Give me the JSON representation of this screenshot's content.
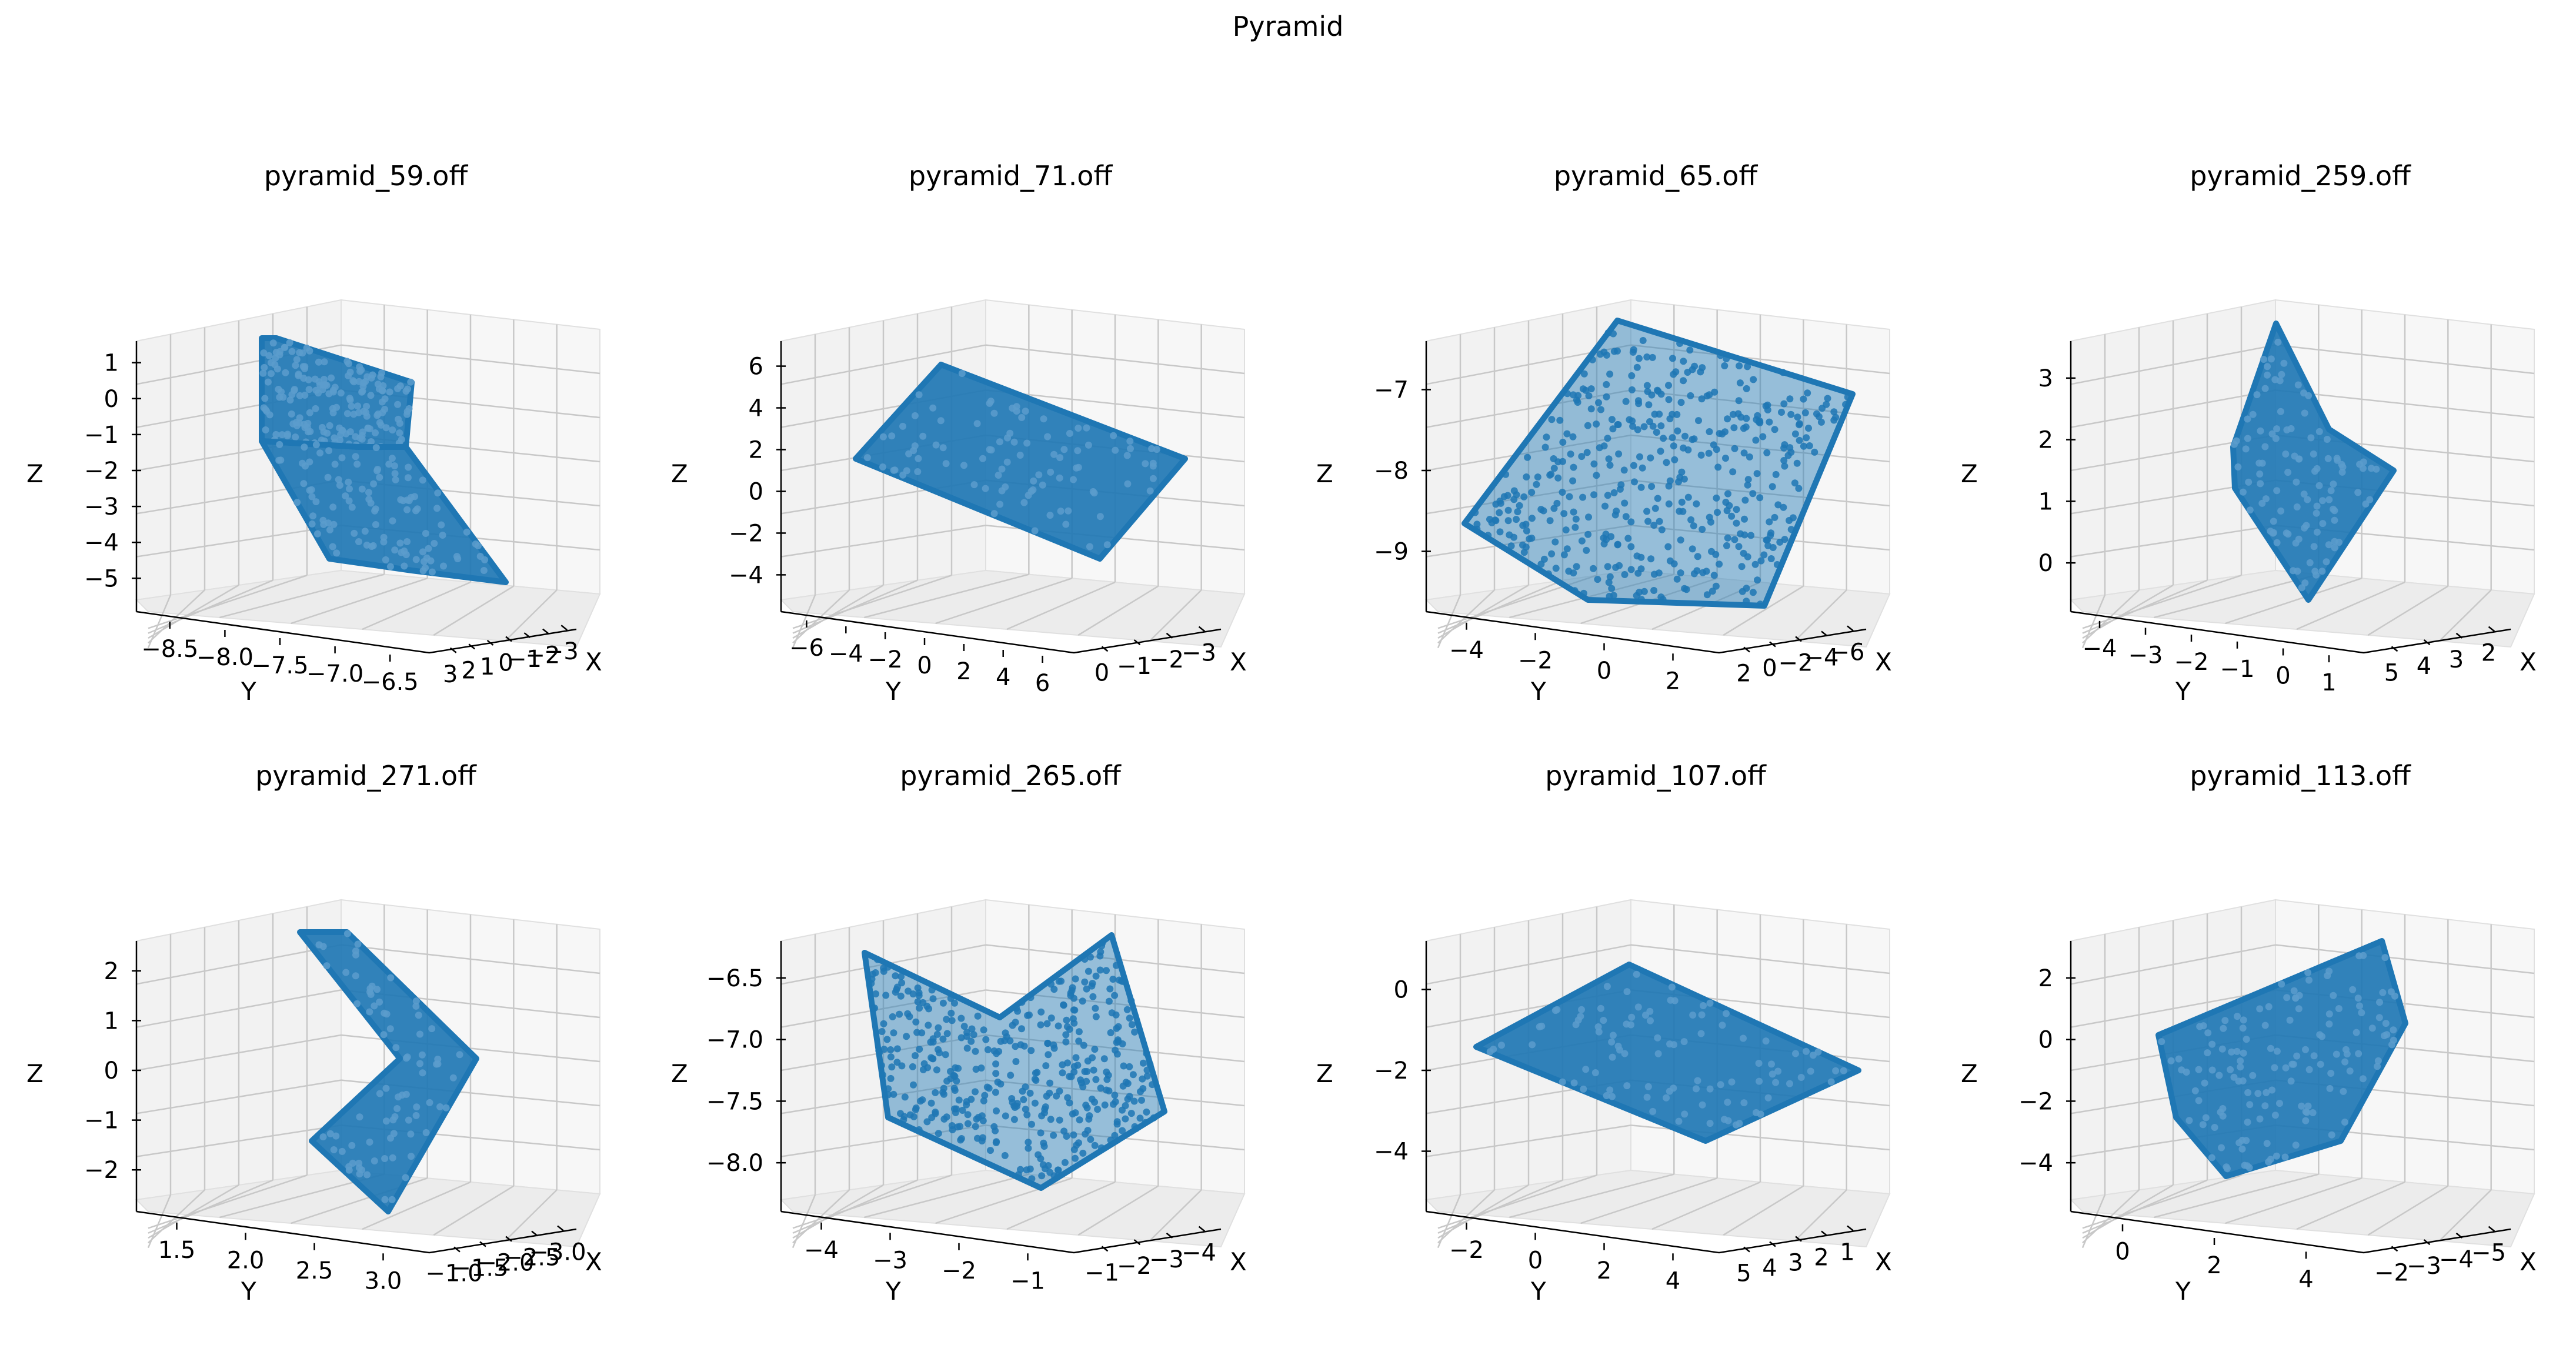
{
  "suptitle": "Pyramid",
  "chart_data": [
    {
      "type": "scatter",
      "title": "pyramid_59.off",
      "xlabel": "X",
      "ylabel": "Y",
      "zlabel": "Z",
      "shape": "fold",
      "x_ticks": [
        "3",
        "2",
        "1",
        "0",
        "−1",
        "−2",
        "−3"
      ],
      "y_ticks": [
        "−8.5",
        "−8.0",
        "−7.5",
        "−7.0",
        "−6.5"
      ],
      "z_ticks": [
        "1",
        "0",
        "−1",
        "−2",
        "−3",
        "−4",
        "−5"
      ],
      "point_color": "#1f77b4"
    },
    {
      "type": "scatter",
      "title": "pyramid_71.off",
      "xlabel": "X",
      "ylabel": "Y",
      "zlabel": "Z",
      "shape": "slab",
      "x_ticks": [
        "0",
        "−1",
        "−2",
        "−3"
      ],
      "y_ticks": [
        "−6",
        "−4",
        "−2",
        "0",
        "2",
        "4",
        "6"
      ],
      "z_ticks": [
        "6",
        "4",
        "2",
        "0",
        "−2",
        "−4"
      ],
      "point_color": "#1f77b4"
    },
    {
      "type": "scatter",
      "title": "pyramid_65.off",
      "xlabel": "X",
      "ylabel": "Y",
      "zlabel": "Z",
      "shape": "sparse",
      "x_ticks": [
        "2",
        "0",
        "−2",
        "−4",
        "−6"
      ],
      "y_ticks": [
        "−4",
        "−2",
        "0",
        "2"
      ],
      "z_ticks": [
        "−7",
        "−8",
        "−9"
      ],
      "point_color": "#1f77b4"
    },
    {
      "type": "scatter",
      "title": "pyramid_259.off",
      "xlabel": "X",
      "ylabel": "Y",
      "zlabel": "Z",
      "shape": "diamond",
      "x_ticks": [
        "5",
        "4",
        "3",
        "2"
      ],
      "y_ticks": [
        "−4",
        "−3",
        "−2",
        "−1",
        "0",
        "1"
      ],
      "z_ticks": [
        "3",
        "2",
        "1",
        "0"
      ],
      "point_color": "#1f77b4"
    },
    {
      "type": "scatter",
      "title": "pyramid_271.off",
      "xlabel": "X",
      "ylabel": "Y",
      "zlabel": "Z",
      "shape": "chevron",
      "x_ticks": [
        "−1.0",
        "−1.5",
        "−2.0",
        "−2.5",
        "−3.0"
      ],
      "y_ticks": [
        "1.5",
        "2.0",
        "2.5",
        "3.0"
      ],
      "z_ticks": [
        "2",
        "1",
        "0",
        "−1",
        "−2"
      ],
      "point_color": "#1f77b4"
    },
    {
      "type": "scatter",
      "title": "pyramid_265.off",
      "xlabel": "X",
      "ylabel": "Y",
      "zlabel": "Z",
      "shape": "cup",
      "x_ticks": [
        "−1",
        "−2",
        "−3",
        "−4"
      ],
      "y_ticks": [
        "−4",
        "−3",
        "−2",
        "−1"
      ],
      "z_ticks": [
        "−6.5",
        "−7.0",
        "−7.5",
        "−8.0"
      ],
      "point_color": "#1f77b4"
    },
    {
      "type": "scatter",
      "title": "pyramid_107.off",
      "xlabel": "X",
      "ylabel": "Y",
      "zlabel": "Z",
      "shape": "flat",
      "x_ticks": [
        "5",
        "4",
        "3",
        "2",
        "1"
      ],
      "y_ticks": [
        "−2",
        "0",
        "2",
        "4"
      ],
      "z_ticks": [
        "0",
        "−2",
        "−4"
      ],
      "point_color": "#1f77b4"
    },
    {
      "type": "scatter",
      "title": "pyramid_113.off",
      "xlabel": "X",
      "ylabel": "Y",
      "zlabel": "Z",
      "shape": "slant",
      "x_ticks": [
        "−2",
        "−3",
        "−4",
        "−5"
      ],
      "y_ticks": [
        "0",
        "2",
        "4"
      ],
      "z_ticks": [
        "2",
        "0",
        "−2",
        "−4"
      ],
      "point_color": "#1f77b4"
    }
  ]
}
